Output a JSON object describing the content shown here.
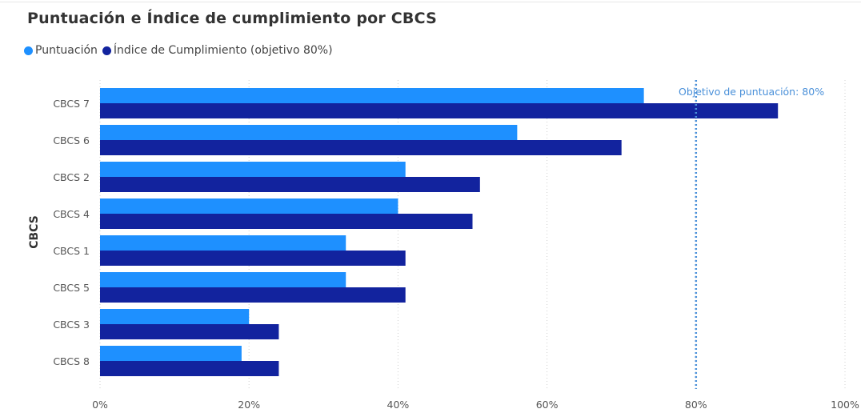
{
  "chart_data": {
    "type": "bar",
    "orientation": "horizontal",
    "title": "Puntuación e Índice de cumplimiento por CBCS",
    "ylabel": "CBCS",
    "xlabel": "",
    "categories": [
      "CBCS 7",
      "CBCS 6",
      "CBCS 2",
      "CBCS 4",
      "CBCS 1",
      "CBCS 5",
      "CBCS 3",
      "CBCS 8"
    ],
    "series": [
      {
        "name": "Puntuación",
        "color": "#1e90ff",
        "values": [
          73,
          56,
          41,
          40,
          33,
          33,
          20,
          19
        ]
      },
      {
        "name": "Índice de Cumplimiento (objetivo 80%)",
        "color": "#12239e",
        "values": [
          91,
          70,
          51,
          50,
          41,
          41,
          24,
          24
        ]
      }
    ],
    "xlim": [
      0,
      100
    ],
    "xticks": [
      "0%",
      "20%",
      "40%",
      "60%",
      "80%",
      "100%"
    ],
    "grid": true,
    "legend_position": "top-left",
    "reference_line": {
      "value": 80,
      "label": "Objetivo de puntuación: 80%",
      "color": "#4a90d9"
    }
  }
}
